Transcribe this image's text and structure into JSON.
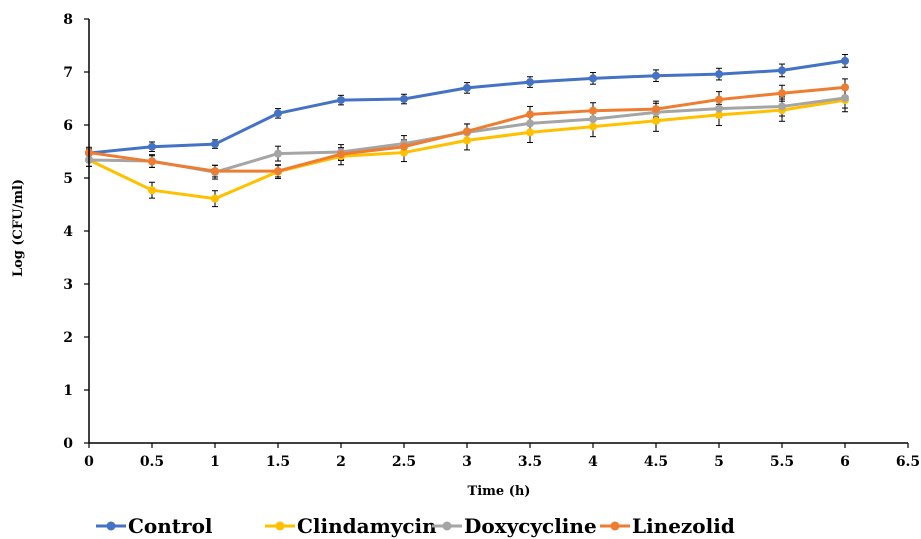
{
  "chart_data": {
    "type": "line",
    "title": "",
    "xlabel": "Time (h)",
    "ylabel": "Log (CFU/ml)",
    "xlim": [
      0,
      6.5
    ],
    "ylim": [
      0,
      8
    ],
    "x_ticks": [
      "0",
      "0.5",
      "1",
      "1.5",
      "2",
      "2.5",
      "3",
      "3.5",
      "4",
      "4.5",
      "5",
      "5.5",
      "6",
      "6.5"
    ],
    "y_ticks": [
      "0",
      "1",
      "2",
      "3",
      "4",
      "5",
      "6",
      "7",
      "8"
    ],
    "grid": false,
    "legend_position": "bottom",
    "x": [
      0,
      0.5,
      1,
      1.5,
      2,
      2.5,
      3,
      3.5,
      4,
      4.5,
      5,
      5.5,
      6
    ],
    "series": [
      {
        "name": "Control",
        "color": "#4472C4",
        "values": [
          5.47,
          5.59,
          5.64,
          6.22,
          6.47,
          6.49,
          6.7,
          6.81,
          6.88,
          6.93,
          6.96,
          7.03,
          7.21
        ],
        "errors": [
          0.08,
          0.09,
          0.08,
          0.09,
          0.09,
          0.09,
          0.1,
          0.1,
          0.11,
          0.11,
          0.11,
          0.12,
          0.12
        ]
      },
      {
        "name": "Clindamycin",
        "color": "#FFC000",
        "values": [
          5.34,
          4.77,
          4.61,
          5.12,
          5.41,
          5.48,
          5.71,
          5.86,
          5.97,
          6.08,
          6.19,
          6.28,
          6.47
        ],
        "errors": [
          0.12,
          0.15,
          0.15,
          0.13,
          0.16,
          0.17,
          0.18,
          0.19,
          0.19,
          0.2,
          0.2,
          0.21,
          0.22
        ]
      },
      {
        "name": "Doxycycline",
        "color": "#A5A5A5",
        "values": [
          5.34,
          5.32,
          5.11,
          5.46,
          5.49,
          5.65,
          5.86,
          6.03,
          6.11,
          6.24,
          6.31,
          6.35,
          6.51
        ],
        "errors": [
          0.12,
          0.12,
          0.13,
          0.14,
          0.14,
          0.15,
          0.16,
          0.16,
          0.17,
          0.17,
          0.17,
          0.18,
          0.19
        ]
      },
      {
        "name": "Linezolid",
        "color": "#ED7D31",
        "values": [
          5.48,
          5.31,
          5.13,
          5.13,
          5.45,
          5.59,
          5.88,
          6.2,
          6.27,
          6.3,
          6.48,
          6.6,
          6.71
        ],
        "errors": [
          0.1,
          0.11,
          0.11,
          0.11,
          0.12,
          0.13,
          0.14,
          0.15,
          0.15,
          0.15,
          0.15,
          0.15,
          0.16
        ]
      }
    ]
  }
}
